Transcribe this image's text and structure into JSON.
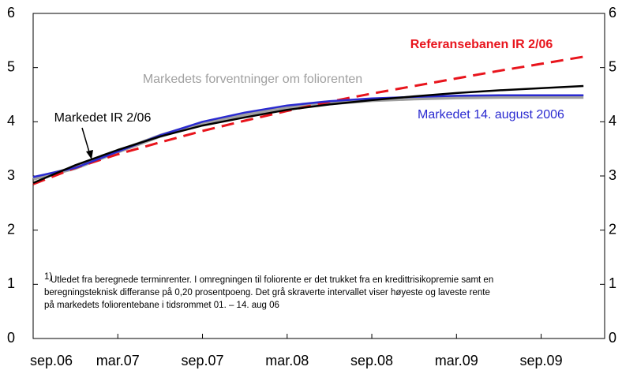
{
  "chart_data": {
    "type": "line",
    "x": [
      0,
      3,
      6,
      9,
      12,
      15,
      18,
      21,
      24,
      27,
      30,
      33,
      36,
      39
    ],
    "xlim": [
      0,
      40.5
    ],
    "xticks": [
      {
        "value": 0,
        "label": "sep.06"
      },
      {
        "value": 6,
        "label": "mar.07"
      },
      {
        "value": 12,
        "label": "sep.07"
      },
      {
        "value": 18,
        "label": "mar.08"
      },
      {
        "value": 24,
        "label": "sep.08"
      },
      {
        "value": 30,
        "label": "mar.09"
      },
      {
        "value": 36,
        "label": "sep.09"
      }
    ],
    "ylim": [
      0,
      6
    ],
    "yticks": [
      0,
      1,
      2,
      3,
      4,
      5,
      6
    ],
    "series": [
      {
        "name": "Markedets forventninger om foliorenten",
        "color": "#a0a0a0",
        "values": [
          2.95,
          3.15,
          3.45,
          3.74,
          3.97,
          4.13,
          4.26,
          4.34,
          4.4,
          4.43,
          4.45,
          4.46,
          4.46,
          4.46
        ]
      },
      {
        "name": "Referansebanen IR 2/06",
        "color": "#e8141c",
        "dashed": true,
        "values": [
          2.85,
          3.15,
          3.4,
          3.62,
          3.83,
          4.02,
          4.2,
          4.37,
          4.52,
          4.66,
          4.8,
          4.94,
          5.07,
          5.2
        ]
      },
      {
        "name": "Markedet 14. august 2006",
        "color": "#2a2ad0",
        "values": [
          2.98,
          3.15,
          3.45,
          3.75,
          4.0,
          4.17,
          4.3,
          4.38,
          4.43,
          4.46,
          4.48,
          4.49,
          4.49,
          4.49
        ]
      },
      {
        "name": "Markedet IR 2/06",
        "color": "#000000",
        "values": [
          2.87,
          3.2,
          3.48,
          3.73,
          3.93,
          4.08,
          4.22,
          4.32,
          4.4,
          4.47,
          4.53,
          4.58,
          4.62,
          4.66
        ]
      }
    ],
    "footnote_marker": "1)",
    "footnote": [
      "Utledet fra beregnede terminrenter. I omregningen til foliorente er det trukket fra en kredittrisikopremie samt en",
      "beregningsteknisk differanse på 0,20 prosentpoeng. Det grå skraverte intervallet viser høyeste og laveste rente",
      "på markedets foliorentebane i tidsrommet 01. – 14. aug 06"
    ]
  }
}
